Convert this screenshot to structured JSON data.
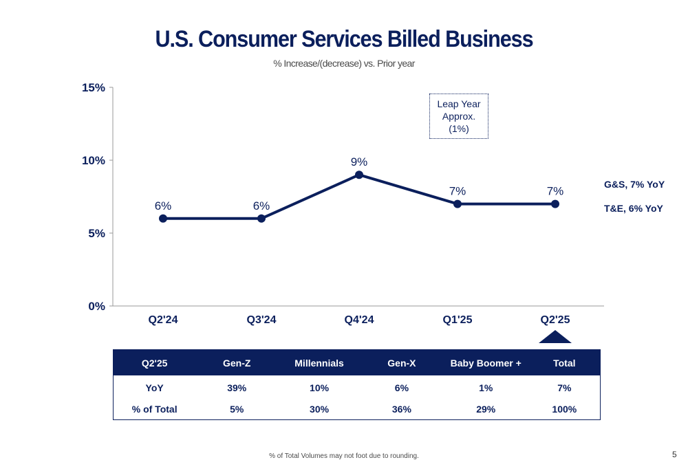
{
  "header": {
    "title": "U.S. Consumer Services Billed Business",
    "subtitle": "% Increase/(decrease) vs. Prior year"
  },
  "chart_data": {
    "type": "line",
    "title": "U.S. Consumer Services Billed Business",
    "subtitle": "% Increase/(decrease) vs. Prior year",
    "xlabel": "",
    "ylabel": "",
    "categories": [
      "Q2'24",
      "Q3'24",
      "Q4'24",
      "Q1'25",
      "Q2'25"
    ],
    "values": [
      6,
      6,
      9,
      7,
      7
    ],
    "data_labels": [
      "6%",
      "6%",
      "9%",
      "7%",
      "7%"
    ],
    "ylim": [
      0,
      15
    ],
    "yticks": [
      0,
      5,
      10,
      15
    ],
    "ytick_labels": [
      "0%",
      "5%",
      "10%",
      "15%"
    ],
    "grid": false,
    "legend": "none",
    "color": "#0b1f5c"
  },
  "annotation": {
    "lines": [
      "Leap Year",
      "Approx.",
      "(1%)"
    ]
  },
  "side_labels": {
    "gs": "G&S, 7% YoY",
    "te": "T&E, 6% YoY"
  },
  "table": {
    "headers": [
      "Q2'25",
      "Gen-Z",
      "Millennials",
      "Gen-X",
      "Baby Boomer +",
      "Total"
    ],
    "rows": [
      [
        "YoY",
        "39%",
        "10%",
        "6%",
        "1%",
        "7%"
      ],
      [
        "% of Total",
        "5%",
        "30%",
        "36%",
        "29%",
        "100%"
      ]
    ]
  },
  "footnote": "% of Total Volumes may not foot due to rounding.",
  "page_number": "5",
  "colors": {
    "accent": "#0b1f5c",
    "subtitle": "#4a4a4a"
  }
}
